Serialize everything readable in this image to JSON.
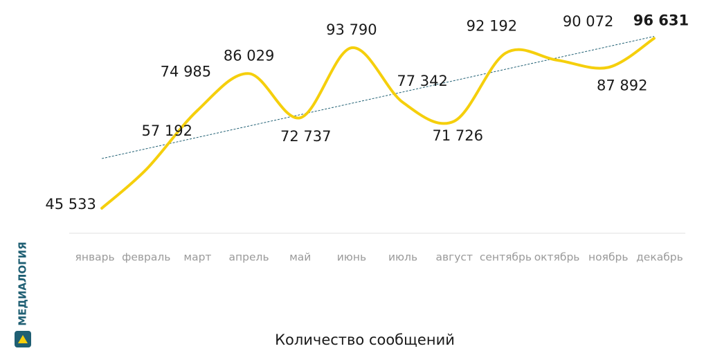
{
  "logo": "МЕДИАЛОГИЯ",
  "chart_data": {
    "type": "line",
    "categories": [
      "январь",
      "февраль",
      "март",
      "апрель",
      "май",
      "июнь",
      "июль",
      "август",
      "сентябрь",
      "октябрь",
      "ноябрь",
      "декабрь"
    ],
    "series": [
      {
        "name": "Количество сообщений",
        "color": "#f5cf0c",
        "values": [
          45533,
          57192,
          74985,
          86029,
          72737,
          93790,
          77342,
          71726,
          92192,
          90072,
          87892,
          96631
        ],
        "value_labels": [
          "45 533",
          "57 192",
          "74 985",
          "86 029",
          "72 737",
          "93 790",
          "77 342",
          "71 726",
          "92 192",
          "90 072",
          "87 892",
          "96 631"
        ]
      }
    ],
    "ylim": [
      38000,
      104000
    ],
    "trendline": true,
    "trendline_color": "#1f5f73"
  }
}
